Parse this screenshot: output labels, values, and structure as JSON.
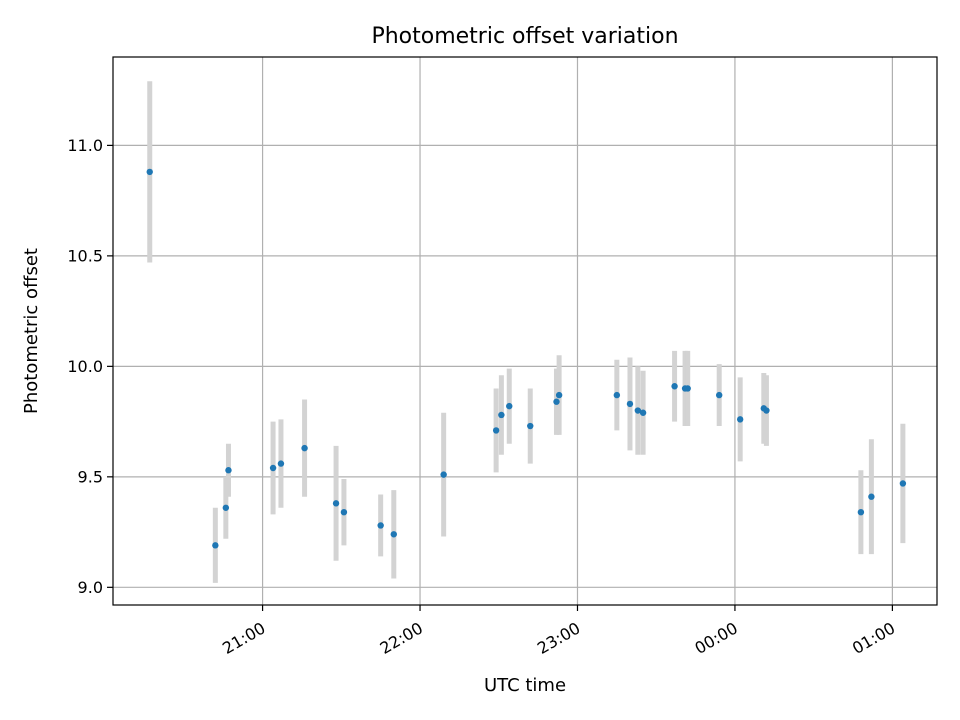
{
  "chart_data": {
    "type": "scatter",
    "title": "Photometric offset variation",
    "xlabel": "UTC time",
    "ylabel": "Photometric offset",
    "x_axis": "time",
    "xlim": [
      "20:03",
      "01:17"
    ],
    "ylim": [
      8.92,
      11.4
    ],
    "x_ticks": [
      "21:00",
      "22:00",
      "23:00",
      "00:00",
      "01:00"
    ],
    "y_ticks": [
      9.0,
      9.5,
      10.0,
      10.5,
      11.0
    ],
    "y_tick_labels": [
      "9.0",
      "9.5",
      "10.0",
      "10.5",
      "11.0"
    ],
    "grid": true,
    "colors": {
      "point": "#1f77b4",
      "errorbar": "#d3d3d3",
      "grid": "#b0b0b0"
    },
    "series": [
      {
        "points": [
          {
            "t": "20:17",
            "y": 10.88,
            "err": 0.41
          },
          {
            "t": "20:42",
            "y": 9.19,
            "err": 0.17
          },
          {
            "t": "20:46",
            "y": 9.36,
            "err": 0.14
          },
          {
            "t": "20:47",
            "y": 9.53,
            "err": 0.12
          },
          {
            "t": "21:04",
            "y": 9.54,
            "err": 0.21
          },
          {
            "t": "21:07",
            "y": 9.56,
            "err": 0.2
          },
          {
            "t": "21:16",
            "y": 9.63,
            "err": 0.22
          },
          {
            "t": "21:28",
            "y": 9.38,
            "err": 0.26
          },
          {
            "t": "21:31",
            "y": 9.34,
            "err": 0.15
          },
          {
            "t": "21:45",
            "y": 9.28,
            "err": 0.14
          },
          {
            "t": "21:50",
            "y": 9.24,
            "err": 0.2
          },
          {
            "t": "22:09",
            "y": 9.51,
            "err": 0.28
          },
          {
            "t": "22:29",
            "y": 9.71,
            "err": 0.19
          },
          {
            "t": "22:31",
            "y": 9.78,
            "err": 0.18
          },
          {
            "t": "22:34",
            "y": 9.82,
            "err": 0.17
          },
          {
            "t": "22:42",
            "y": 9.73,
            "err": 0.17
          },
          {
            "t": "22:52",
            "y": 9.84,
            "err": 0.15
          },
          {
            "t": "22:53",
            "y": 9.87,
            "err": 0.18
          },
          {
            "t": "23:15",
            "y": 9.87,
            "err": 0.16
          },
          {
            "t": "23:20",
            "y": 9.83,
            "err": 0.21
          },
          {
            "t": "23:23",
            "y": 9.8,
            "err": 0.2
          },
          {
            "t": "23:25",
            "y": 9.79,
            "err": 0.19
          },
          {
            "t": "23:37",
            "y": 9.91,
            "err": 0.16
          },
          {
            "t": "23:41",
            "y": 9.9,
            "err": 0.17
          },
          {
            "t": "23:42",
            "y": 9.9,
            "err": 0.17
          },
          {
            "t": "23:54",
            "y": 9.87,
            "err": 0.14
          },
          {
            "t": "00:02",
            "y": 9.76,
            "err": 0.19
          },
          {
            "t": "00:11",
            "y": 9.81,
            "err": 0.16
          },
          {
            "t": "00:12",
            "y": 9.8,
            "err": 0.16
          },
          {
            "t": "00:48",
            "y": 9.34,
            "err": 0.19
          },
          {
            "t": "00:52",
            "y": 9.41,
            "err": 0.26
          },
          {
            "t": "01:04",
            "y": 9.47,
            "err": 0.27
          }
        ]
      }
    ]
  }
}
